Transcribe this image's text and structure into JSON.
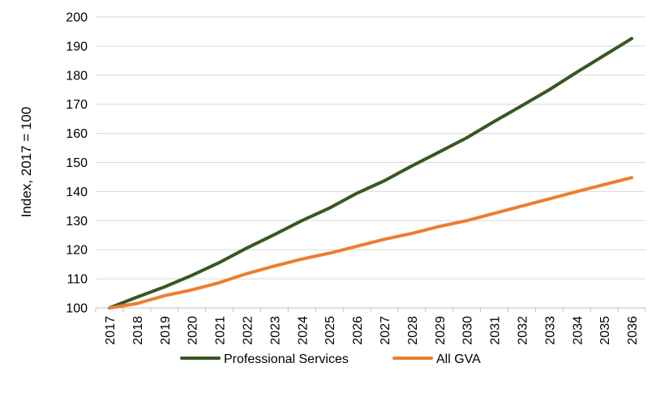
{
  "chart_data": {
    "type": "line",
    "title": "",
    "xlabel": "",
    "ylabel": "Index, 2017 = 100",
    "ylim": [
      100,
      200
    ],
    "yticks": [
      100,
      110,
      120,
      130,
      140,
      150,
      160,
      170,
      180,
      190,
      200
    ],
    "grid": true,
    "legend_position": "bottom",
    "categories": [
      "2017",
      "2018",
      "2019",
      "2020",
      "2021",
      "2022",
      "2023",
      "2024",
      "2025",
      "2026",
      "2027",
      "2028",
      "2029",
      "2030",
      "2031",
      "2032",
      "2033",
      "2034",
      "2035",
      "2036"
    ],
    "series": [
      {
        "name": "Professional Services",
        "color": "#385723",
        "values": [
          100,
          103.7,
          107.2,
          111.2,
          115.6,
          120.6,
          125.2,
          130.0,
          134.3,
          139.4,
          143.7,
          148.8,
          153.6,
          158.5,
          164.1,
          169.5,
          175.0,
          181.0,
          186.8,
          192.6
        ]
      },
      {
        "name": "All GVA",
        "color": "#ED7D31",
        "values": [
          100,
          101.5,
          104.2,
          106.2,
          108.7,
          111.8,
          114.4,
          116.8,
          118.8,
          121.2,
          123.6,
          125.6,
          128.0,
          130.0,
          132.5,
          135.0,
          137.5,
          140.0,
          142.4,
          144.8
        ]
      }
    ]
  }
}
